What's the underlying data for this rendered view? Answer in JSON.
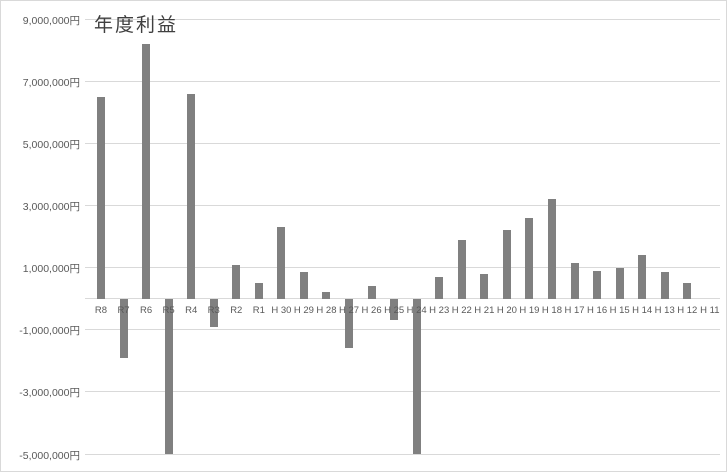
{
  "chart_data": {
    "type": "bar",
    "title": "年度利益",
    "categories": [
      "R8",
      "R7",
      "R6",
      "R5",
      "R4",
      "R3",
      "R2",
      "R1",
      "H 30",
      "H 29",
      "H 28",
      "H 27",
      "H 26",
      "H 25",
      "H 24",
      "H 23",
      "H 22",
      "H 21",
      "H 20",
      "H 19",
      "H 18",
      "H 17",
      "H 16",
      "H 15",
      "H 14",
      "H 13",
      "H 12",
      "H 11"
    ],
    "values": [
      6500000,
      -1900000,
      8200000,
      -5000000,
      6600000,
      -900000,
      1100000,
      500000,
      2300000,
      850000,
      200000,
      -1600000,
      400000,
      -700000,
      -5000000,
      700000,
      1900000,
      800000,
      2200000,
      2600000,
      3200000,
      1150000,
      900000,
      1000000,
      1400000,
      850000,
      500000,
      0
    ],
    "xlabel": "",
    "ylabel": "",
    "ylim": [
      -5000000,
      9000000
    ],
    "y_ticks": [
      {
        "value": 9000000,
        "label": "9,000,000円"
      },
      {
        "value": 7000000,
        "label": "7,000,000円"
      },
      {
        "value": 5000000,
        "label": "5,000,000円"
      },
      {
        "value": 3000000,
        "label": "3,000,000円"
      },
      {
        "value": 1000000,
        "label": "1,000,000円"
      },
      {
        "value": -1000000,
        "label": "-1,000,000円"
      },
      {
        "value": -3000000,
        "label": "-3,000,000円"
      },
      {
        "value": -5000000,
        "label": "-5,000,000円"
      }
    ],
    "unit": "円",
    "grid": true,
    "legend": false,
    "colors": {
      "bar": "#808080",
      "gridline": "#d9d9d9",
      "axis_label": "#595959",
      "title": "#404040",
      "background": "#ffffff",
      "border": "#d9d9d9"
    }
  }
}
